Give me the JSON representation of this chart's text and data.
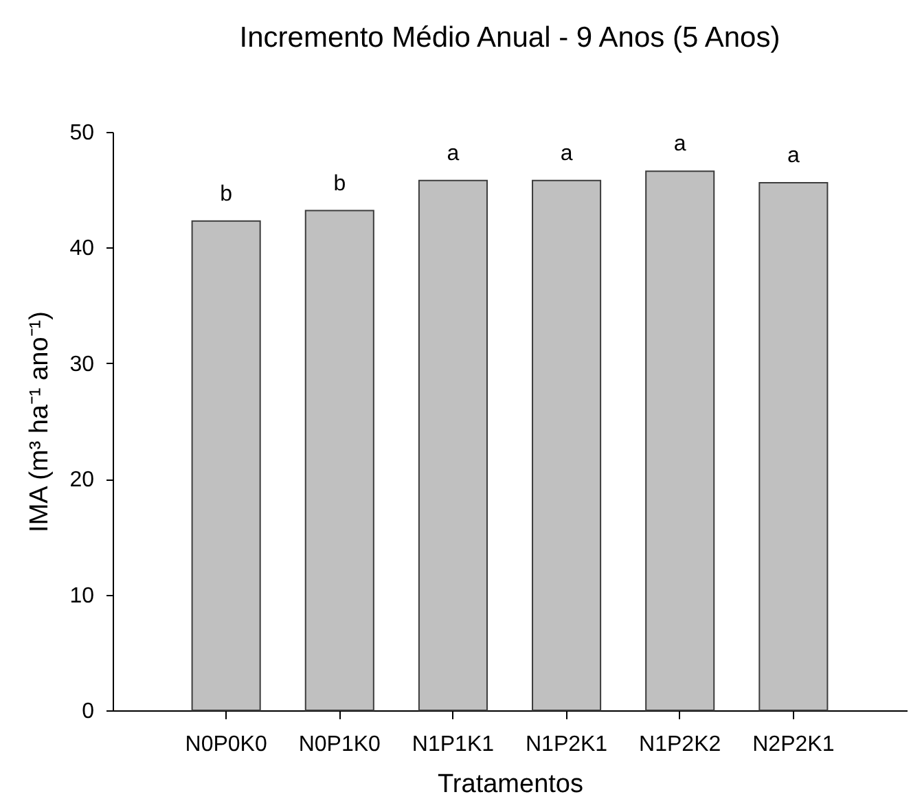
{
  "chart_data": {
    "type": "bar",
    "title": "Incremento Médio Anual - 9 Anos (5 Anos)",
    "xlabel": "Tratamentos",
    "ylabel": "IMA (m³ ha⁻¹ ano⁻¹)",
    "categories": [
      "N0P0K0",
      "N0P1K0",
      "N1P1K1",
      "N1P2K1",
      "N1P2K2",
      "N2P2K1"
    ],
    "values": [
      42.3,
      43.2,
      45.8,
      45.8,
      46.6,
      45.6
    ],
    "color": "#c0c0c0",
    "ylim": [
      0,
      50
    ],
    "yticks": [
      0,
      10,
      20,
      30,
      40,
      50
    ],
    "annotations": [
      {
        "text": "b",
        "x": "N0P0K0",
        "y": 42.3
      },
      {
        "text": "b",
        "x": "N0P1K0",
        "y": 43.2
      },
      {
        "text": "a",
        "x": "N1P1K1",
        "y": 45.8
      },
      {
        "text": "a",
        "x": "N1P2K1",
        "y": 45.8
      },
      {
        "text": "a",
        "x": "N1P2K2",
        "y": 46.6
      },
      {
        "text": "a",
        "x": "N2P2K1",
        "y": 45.6
      }
    ]
  }
}
